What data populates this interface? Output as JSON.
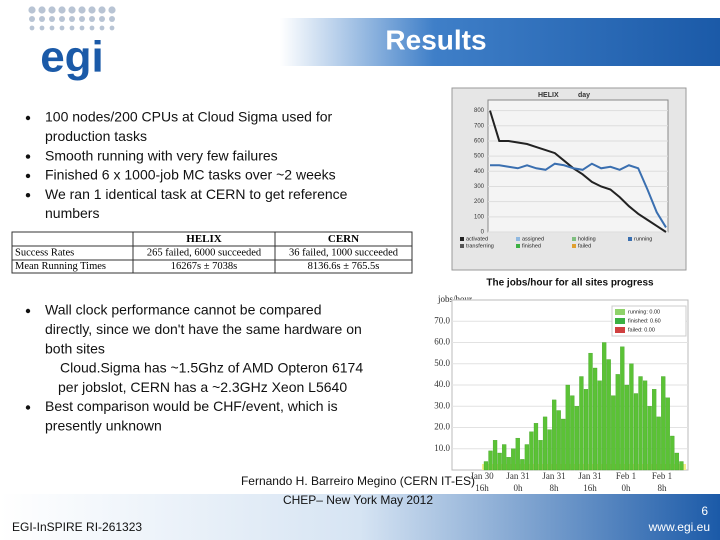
{
  "header": {
    "logo_text": "egi",
    "title": "Results"
  },
  "bullets_top": [
    [
      "100 nodes/200 CPUs at Cloud Sigma used for",
      "production tasks"
    ],
    [
      "Smooth running with very few failures"
    ],
    [
      "Finished 6 x 1000-job MC tasks over ~2 weeks"
    ],
    [
      "We ran 1 identical task at CERN to get reference",
      "numbers"
    ]
  ],
  "table": {
    "header": [
      "HELIX",
      "CERN"
    ],
    "rows": [
      [
        "Success Rates",
        "265 failed, 6000 succeeded",
        "36 failed, 1000 succeeded"
      ],
      [
        "Mean Running Times",
        "16267s ± 7038s",
        "8136.6s ± 765.5s"
      ]
    ]
  },
  "bullets_bottom": [
    {
      "bullet": true,
      "lines": [
        "Wall clock performance cannot be compared",
        "directly, since we don't have the same hardware on",
        "both sites"
      ]
    },
    {
      "bullet": false,
      "lines": [
        "Cloud.Sigma has ~1.5Ghz of AMD Opteron 6174",
        "per jobslot, CERN has a ~2.3GHz Xeon L5640"
      ]
    },
    {
      "bullet": true,
      "lines": [
        "Best comparison would be CHF/event, which is",
        "presently unknown"
      ]
    }
  ],
  "figures": {
    "panda_chart": {
      "tabs": [
        "HELIX",
        "day"
      ],
      "ylim": [
        0,
        870
      ],
      "yticks": [
        0,
        100,
        200,
        300,
        400,
        500,
        600,
        700,
        800
      ],
      "series": [
        {
          "color": "#222222",
          "values": [
            800,
            600,
            600,
            590,
            580,
            560,
            540,
            520,
            470,
            420,
            380,
            330,
            300,
            280,
            230,
            170,
            120,
            80,
            40,
            0
          ]
        },
        {
          "color": "#3a6fb0",
          "values": [
            440,
            440,
            430,
            420,
            440,
            420,
            410,
            450,
            440,
            420,
            410,
            450,
            420,
            430,
            410,
            440,
            420,
            280,
            130,
            30
          ]
        }
      ],
      "legend": [
        {
          "label": "activated",
          "color": "#222222"
        },
        {
          "label": "assigned",
          "color": "#8fb8e0"
        },
        {
          "label": "holding",
          "color": "#7fbf7f"
        },
        {
          "label": "running",
          "color": "#3a6fb0"
        },
        {
          "label": "transferring",
          "color": "#555555"
        },
        {
          "label": "finished",
          "color": "#3cb043"
        },
        {
          "label": "failed",
          "color": "#e0a030"
        }
      ],
      "caption": "The jobs/hour for all sites progress"
    },
    "jobs_chart": {
      "ylabel": "jobs/hour",
      "ylim": [
        0,
        80
      ],
      "yticks": [
        {
          "value": 10,
          "label": "10.0"
        },
        {
          "value": 20,
          "label": "20.0"
        },
        {
          "value": 30,
          "label": "30.0"
        },
        {
          "value": 40,
          "label": "40.0"
        },
        {
          "value": 50,
          "label": "50.0"
        },
        {
          "value": 60,
          "label": "60.0"
        },
        {
          "value": 70,
          "label": "70.0"
        }
      ],
      "xlabels": [
        [
          "Jan 30",
          "16h"
        ],
        [
          "Jan 31",
          "0h"
        ],
        [
          "Jan 31",
          "8h"
        ],
        [
          "Jan 31",
          "16h"
        ],
        [
          "Feb 1",
          "0h"
        ],
        [
          "Feb 1",
          "8h"
        ]
      ],
      "color": "#5bc236",
      "values": [
        4,
        9,
        14,
        8,
        12,
        6,
        10,
        15,
        5,
        12,
        18,
        22,
        14,
        25,
        19,
        33,
        28,
        24,
        40,
        35,
        30,
        44,
        38,
        55,
        48,
        42,
        60,
        52,
        35,
        45,
        58,
        40,
        50,
        36,
        44,
        42,
        30,
        38,
        25,
        44,
        34,
        16,
        8,
        4
      ],
      "legend": [
        {
          "label": "running: 0.00",
          "color": "#8fd36a"
        },
        {
          "label": "finished: 0.60",
          "color": "#3cb043"
        },
        {
          "label": "failed: 0.00",
          "color": "#d04040"
        }
      ]
    }
  },
  "footer": {
    "left": "EGI-InSPIRE RI-261323",
    "center": [
      "Fernando H. Barreiro Megino (CERN IT-ES)",
      "CHEP– New York May 2012"
    ],
    "page": "6",
    "url": "www.egi.eu"
  }
}
